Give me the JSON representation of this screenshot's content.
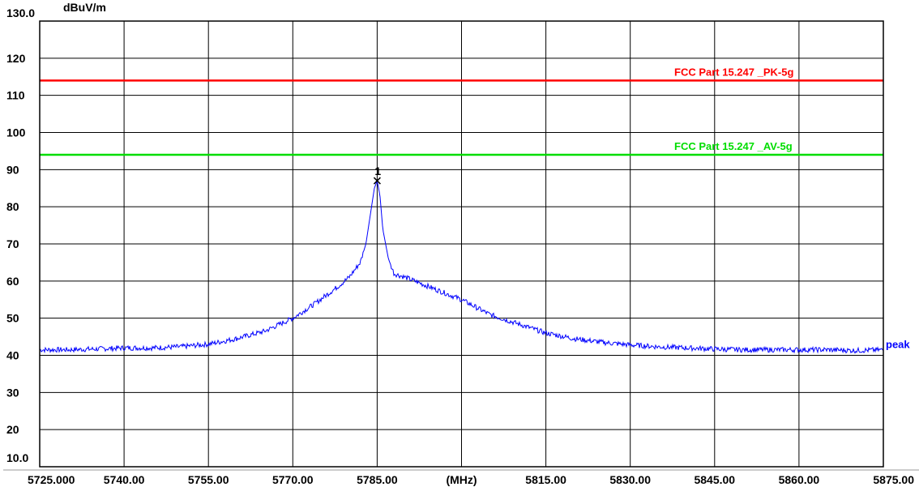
{
  "chart_data": {
    "type": "line",
    "ylabel": "dBuV/m",
    "xlabel": "(MHz)",
    "xlim": [
      5725,
      5875
    ],
    "ylim": [
      10,
      130
    ],
    "grid": true,
    "y_ticks": [
      "130.0",
      "120",
      "110",
      "100",
      "90",
      "80",
      "70",
      "60",
      "50",
      "40",
      "30",
      "20",
      "10.0"
    ],
    "x_ticks": [
      "5725.000",
      "5740.00",
      "5755.00",
      "5770.00",
      "5785.00",
      "(MHz)",
      "5815.00",
      "5830.00",
      "5845.00",
      "5860.00",
      "5875.00"
    ],
    "limit_lines": [
      {
        "name": "FCC Part 15.247 _PK-5g",
        "value": 114,
        "color": "#ff0000"
      },
      {
        "name": "FCC Part 15.247 _AV-5g",
        "value": 94,
        "color": "#00dd00"
      }
    ],
    "series": [
      {
        "name": "peak",
        "color": "#0000ff",
        "x": [
          5725,
          5730,
          5735,
          5740,
          5745,
          5750,
          5755,
          5760,
          5765,
          5770,
          5774,
          5778,
          5780,
          5782,
          5783,
          5784,
          5784.5,
          5785,
          5785.5,
          5786,
          5787,
          5788,
          5790,
          5795,
          5800,
          5805,
          5810,
          5815,
          5820,
          5825,
          5830,
          5835,
          5840,
          5845,
          5850,
          5855,
          5860,
          5865,
          5870,
          5875
        ],
        "values": [
          41.5,
          41.5,
          41.7,
          42,
          42,
          42.3,
          43,
          44.5,
          46.5,
          50,
          54,
          58.5,
          61,
          65,
          70,
          80,
          85,
          87,
          83,
          74,
          66,
          62,
          61,
          58,
          55,
          51,
          48.5,
          46,
          44.5,
          43.5,
          42.8,
          42.3,
          42,
          41.7,
          41.5,
          41.5,
          41.5,
          41.5,
          41.3,
          41.5
        ]
      }
    ],
    "marker": {
      "label": "1",
      "x": 5785,
      "y": 87
    }
  }
}
